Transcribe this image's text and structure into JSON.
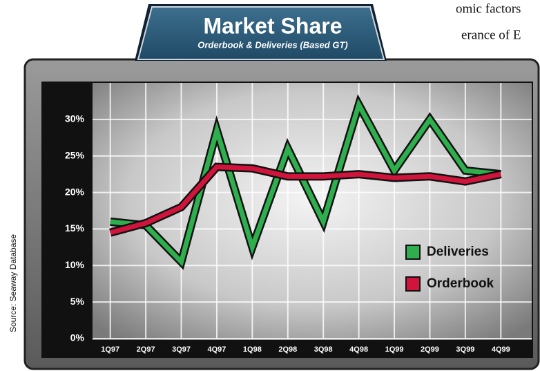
{
  "page_text": [
    "omic factors",
    "erance of E"
  ],
  "chart_data": {
    "type": "line",
    "title": "Market Share",
    "subtitle": "Orderbook & Deliveries (Based GT)",
    "source": "Source: Seaway Database",
    "categories": [
      "1Q97",
      "2Q97",
      "3Q97",
      "4Q97",
      "1Q98",
      "2Q98",
      "3Q98",
      "4Q98",
      "1Q99",
      "2Q99",
      "3Q99",
      "4Q99"
    ],
    "series": [
      {
        "name": "Deliveries",
        "color": "#2fae4e",
        "values": [
          16,
          15.5,
          10.5,
          28.5,
          12.5,
          26,
          16,
          32,
          23,
          30,
          23,
          22.5
        ]
      },
      {
        "name": "Orderbook",
        "color": "#d0143c",
        "values": [
          14.5,
          15.8,
          18,
          23.5,
          23.3,
          22.2,
          22.2,
          22.5,
          22,
          22.2,
          21.5,
          22.5
        ]
      }
    ],
    "ylim": [
      0,
      35
    ],
    "yticks": [
      {
        "value": 0,
        "label": "0%"
      },
      {
        "value": 5,
        "label": "5%"
      },
      {
        "value": 10,
        "label": "10%"
      },
      {
        "value": 15,
        "label": "15%"
      },
      {
        "value": 20,
        "label": "20%"
      },
      {
        "value": 25,
        "label": "25%"
      },
      {
        "value": 30,
        "label": "30%"
      }
    ],
    "grid": true,
    "legend": "right"
  }
}
